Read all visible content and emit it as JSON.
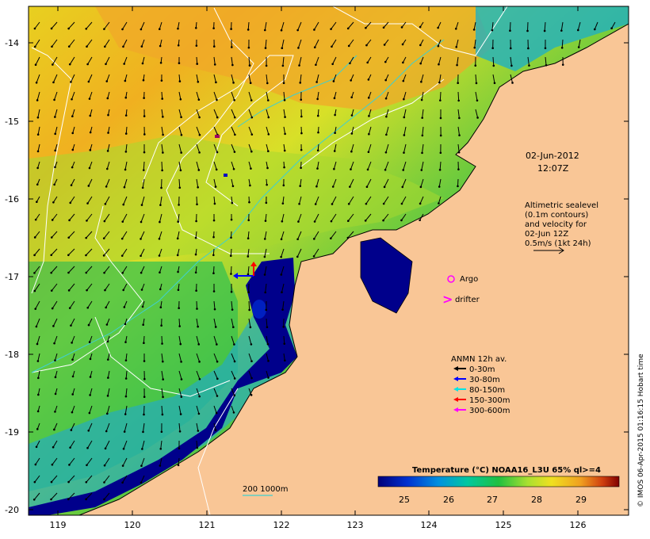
{
  "map": {
    "x_axis": {
      "label": "",
      "ticks": [
        "119",
        "120",
        "121",
        "122",
        "123",
        "124",
        "125",
        "126"
      ],
      "range": [
        118.6,
        126.75
      ]
    },
    "y_axis": {
      "label": "",
      "ticks": [
        "-14",
        "-15",
        "-16",
        "-17",
        "-18",
        "-19",
        "-20"
      ],
      "range": [
        -20.05,
        -13.55
      ]
    },
    "date_line1": "02-Jun-2012",
    "date_line2": "12:07Z",
    "altimetry_note": [
      "Altimetric sealevel",
      "(0.1m contours)",
      "and velocity for",
      "02-Jun 12Z",
      "0.5m/s (1kt 24h)"
    ],
    "argo_label": "Argo",
    "drifter_label": "drifter",
    "anmn_legend": {
      "title": "ANMN 12h av.",
      "items": [
        {
          "label": "0-30m",
          "color": "#000000"
        },
        {
          "label": "30-80m",
          "color": "#0000ff"
        },
        {
          "label": "80-150m",
          "color": "#00e5e5"
        },
        {
          "label": "150-300m",
          "color": "#ff0000"
        },
        {
          "label": "300-600m",
          "color": "#ff00ff"
        }
      ]
    },
    "depth_contour_label": "200  1000m",
    "colorbar": {
      "title": "Temperature (°C) NOAA16_L3U 65% ql>=4",
      "ticks": [
        "25",
        "26",
        "27",
        "28",
        "29"
      ],
      "range": [
        24.4,
        29.9
      ]
    },
    "copyright": "© IMOS 06-Apr-2015 01:16:15 Hobart time",
    "colors": {
      "land": "#f9c696",
      "cold": "#00008b",
      "warm": "#f0a020",
      "contour": "#ffffff",
      "depth_contour": "#3fd0d0"
    }
  }
}
